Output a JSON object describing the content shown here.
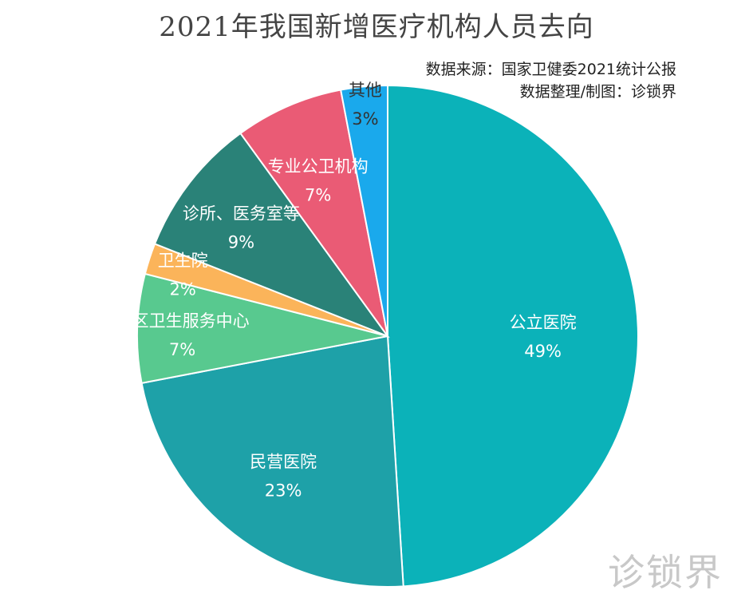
{
  "chart_data": {
    "type": "pie",
    "title": "2021年我国新增医疗机构人员去向",
    "source_lines": [
      "数据来源：国家卫健委2021统计公报",
      "数据整理/制图：诊锁界"
    ],
    "slices": [
      {
        "label": "公立医院",
        "percent_label": "49%",
        "value": 49,
        "color": "#0bb2b9",
        "label_color": "#ffffff"
      },
      {
        "label": "民营医院",
        "percent_label": "23%",
        "value": 23,
        "color": "#1ea1a8",
        "label_color": "#ffffff"
      },
      {
        "label": "社区卫生服务中心",
        "percent_label": "7%",
        "value": 7,
        "color": "#58c98f",
        "label_color": "#ffffff"
      },
      {
        "label": "卫生院",
        "percent_label": "2%",
        "value": 2,
        "color": "#fbb45a",
        "label_color": "#ffffff"
      },
      {
        "label": "诊所、医务室等",
        "percent_label": "9%",
        "value": 9,
        "color": "#2a8278",
        "label_color": "#ffffff"
      },
      {
        "label": "专业公卫机构",
        "percent_label": "7%",
        "value": 7,
        "color": "#ea5b75",
        "label_color": "#ffffff"
      },
      {
        "label": "其他",
        "percent_label": "3%",
        "value": 3,
        "color": "#1aa9ec",
        "label_color": "#333333"
      }
    ],
    "start_angle": "12 o'clock",
    "direction": "clockwise",
    "legend": "none",
    "watermark": "诊锁界"
  }
}
